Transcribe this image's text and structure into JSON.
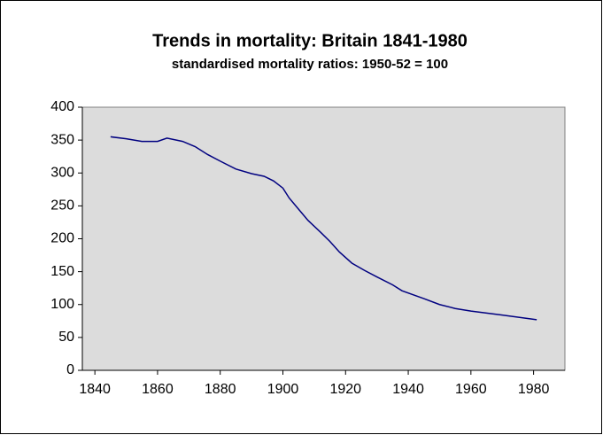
{
  "chart_data": {
    "type": "line",
    "title": "Trends in mortality: Britain 1841-1980",
    "subtitle": "standardised mortality ratios: 1950-52 = 100",
    "x": [
      1845,
      1850,
      1855,
      1860,
      1863,
      1868,
      1872,
      1876,
      1880,
      1885,
      1890,
      1894,
      1897,
      1900,
      1902,
      1905,
      1908,
      1912,
      1915,
      1918,
      1922,
      1926,
      1930,
      1935,
      1938,
      1945,
      1950,
      1955,
      1960,
      1970,
      1981
    ],
    "series": [
      {
        "name": "standardised mortality ratio",
        "color": "#000080",
        "values": [
          355,
          352,
          348,
          348,
          353,
          348,
          340,
          328,
          318,
          306,
          299,
          295,
          288,
          277,
          262,
          245,
          228,
          210,
          196,
          180,
          163,
          152,
          142,
          130,
          121,
          109,
          100,
          94,
          90,
          84,
          77
        ]
      }
    ],
    "xlim": [
      1836,
      1990
    ],
    "xticks": [
      1840,
      1860,
      1880,
      1900,
      1920,
      1940,
      1960,
      1980
    ],
    "ylim": [
      0,
      400
    ],
    "yticks": [
      0,
      50,
      100,
      150,
      200,
      250,
      300,
      350,
      400
    ],
    "plot_background": "#dcdcdc"
  }
}
